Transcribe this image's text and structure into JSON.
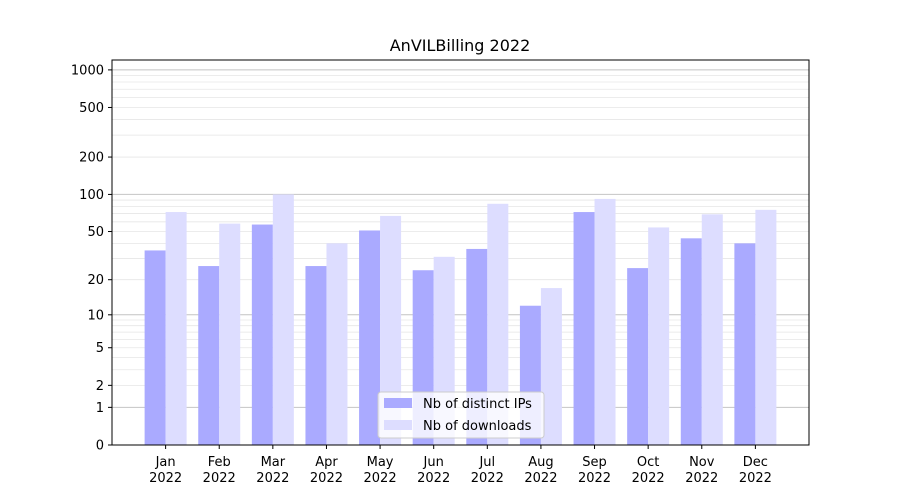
{
  "chart_data": {
    "type": "bar",
    "title": "AnVILBilling 2022",
    "xlabel": "",
    "ylabel": "",
    "yscale": "log(y+1)",
    "ylim": [
      0,
      1200
    ],
    "y_ticks": [
      0,
      1,
      2,
      5,
      10,
      20,
      50,
      100,
      200,
      500,
      1000
    ],
    "grid": true,
    "legend_position": "bottom-center",
    "categories": [
      "Jan\n2022",
      "Feb\n2022",
      "Mar\n2022",
      "Apr\n2022",
      "May\n2022",
      "Jun\n2022",
      "Jul\n2022",
      "Aug\n2022",
      "Sep\n2022",
      "Oct\n2022",
      "Nov\n2022",
      "Dec\n2022"
    ],
    "series": [
      {
        "name": "Nb of distinct IPs",
        "color": "#aaaaff",
        "values": [
          35,
          26,
          57,
          26,
          51,
          24,
          36,
          12,
          72,
          25,
          44,
          40
        ]
      },
      {
        "name": "Nb of downloads",
        "color": "#ddddff",
        "values": [
          72,
          58,
          100,
          40,
          67,
          31,
          84,
          17,
          92,
          54,
          69,
          75
        ]
      }
    ]
  }
}
